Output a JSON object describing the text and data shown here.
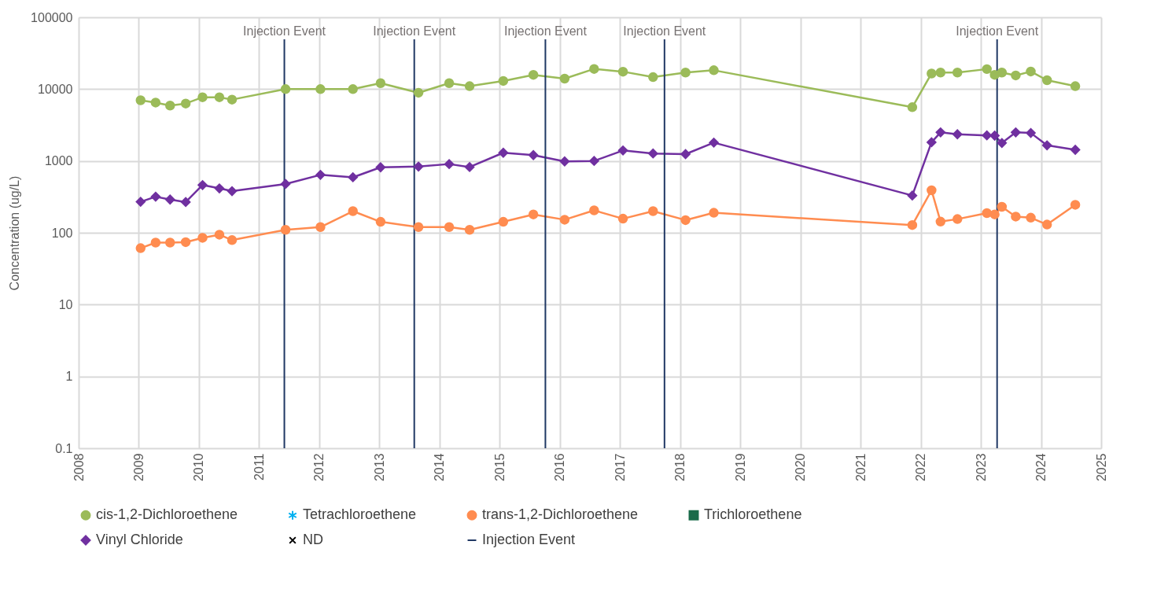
{
  "chart_data": {
    "type": "line",
    "ylabel": "Concentration (ug/L)",
    "log": "y",
    "grid": true,
    "legend": "bottom",
    "xlim": [
      2008,
      2025
    ],
    "xticks": [
      2008,
      2009,
      2010,
      2011,
      2012,
      2013,
      2014,
      2015,
      2016,
      2017,
      2018,
      2019,
      2020,
      2021,
      2022,
      2023,
      2024,
      2025
    ],
    "ylim": [
      0.1,
      100000
    ],
    "yticks": [
      0.1,
      1,
      10,
      100,
      1000,
      10000,
      100000
    ],
    "x": [
      2009.03,
      2009.28,
      2009.52,
      2009.78,
      2010.06,
      2010.34,
      2010.55,
      2011.44,
      2012.02,
      2012.56,
      2013.02,
      2013.65,
      2014.16,
      2014.5,
      2015.06,
      2015.56,
      2016.08,
      2016.57,
      2017.05,
      2017.55,
      2018.09,
      2018.56,
      2021.86,
      2022.18,
      2022.33,
      2022.61,
      2023.1,
      2023.23,
      2023.35,
      2023.58,
      2023.83,
      2024.1,
      2024.57
    ],
    "series": [
      {
        "name": "cis-1,2-Dichloroethene",
        "color": "#9bbb59",
        "marker": "circle",
        "values": [
          7000,
          6500,
          5900,
          6300,
          7700,
          7700,
          7150,
          10000,
          10000,
          10000,
          12100,
          8900,
          12100,
          11000,
          13000,
          15800,
          14000,
          19100,
          17500,
          14700,
          17000,
          18300,
          5600,
          16500,
          17000,
          17000,
          19000,
          15800,
          17000,
          15500,
          17600,
          13300,
          11000
        ]
      },
      {
        "name": "Tetrachloroethene",
        "color": "#00b0f0",
        "marker": "star",
        "values": [
          null,
          null,
          null,
          null,
          null,
          null,
          null,
          null,
          null,
          null,
          null,
          null,
          null,
          null,
          null,
          null,
          null,
          null,
          null,
          null,
          null,
          null,
          null,
          null,
          null,
          null,
          null,
          null,
          null,
          null,
          null,
          null,
          null
        ]
      },
      {
        "name": "trans-1,2-Dichloroethene",
        "color": "#ff8c50",
        "marker": "circle",
        "values": [
          61,
          73,
          73,
          74,
          85,
          94,
          79,
          110,
          120,
          200,
          142,
          120,
          120,
          110,
          142,
          180,
          152,
          205,
          157,
          200,
          150,
          190,
          128,
          390,
          143,
          155,
          188,
          180,
          230,
          168,
          162,
          130,
          245
        ]
      },
      {
        "name": "Trichloroethene",
        "color": "#1a6b4a",
        "marker": "square",
        "values": [
          null,
          null,
          null,
          null,
          null,
          null,
          null,
          null,
          null,
          null,
          null,
          null,
          null,
          null,
          null,
          null,
          null,
          null,
          null,
          null,
          null,
          null,
          null,
          null,
          null,
          null,
          null,
          null,
          null,
          null,
          null,
          null,
          null
        ]
      },
      {
        "name": "Vinyl Chloride",
        "color": "#7030a0",
        "marker": "diamond",
        "values": [
          270,
          318,
          290,
          268,
          462,
          415,
          380,
          478,
          640,
          592,
          815,
          835,
          905,
          822,
          1300,
          1205,
          985,
          1000,
          1400,
          1270,
          1245,
          1800,
          330,
          1820,
          2500,
          2350,
          2270,
          2250,
          1780,
          2500,
          2450,
          1650,
          1430
        ]
      },
      {
        "name": "ND",
        "color": "#000000",
        "marker": "cross",
        "values": [
          null,
          null,
          null,
          null,
          null,
          null,
          null,
          null,
          null,
          null,
          null,
          null,
          null,
          null,
          null,
          null,
          null,
          null,
          null,
          null,
          null,
          null,
          null,
          null,
          null,
          null,
          null,
          null,
          null,
          null,
          null,
          null,
          null
        ]
      }
    ],
    "ref_lines": [
      {
        "axis": "x",
        "value": 2011.42,
        "label": "Injection Event",
        "color": "#203864"
      },
      {
        "axis": "x",
        "value": 2013.58,
        "label": "Injection Event",
        "color": "#203864"
      },
      {
        "axis": "x",
        "value": 2015.76,
        "label": "Injection Event",
        "color": "#203864"
      },
      {
        "axis": "x",
        "value": 2017.74,
        "label": "Injection Event",
        "color": "#203864"
      },
      {
        "axis": "x",
        "value": 2023.27,
        "label": "Injection Event",
        "color": "#203864"
      }
    ]
  }
}
